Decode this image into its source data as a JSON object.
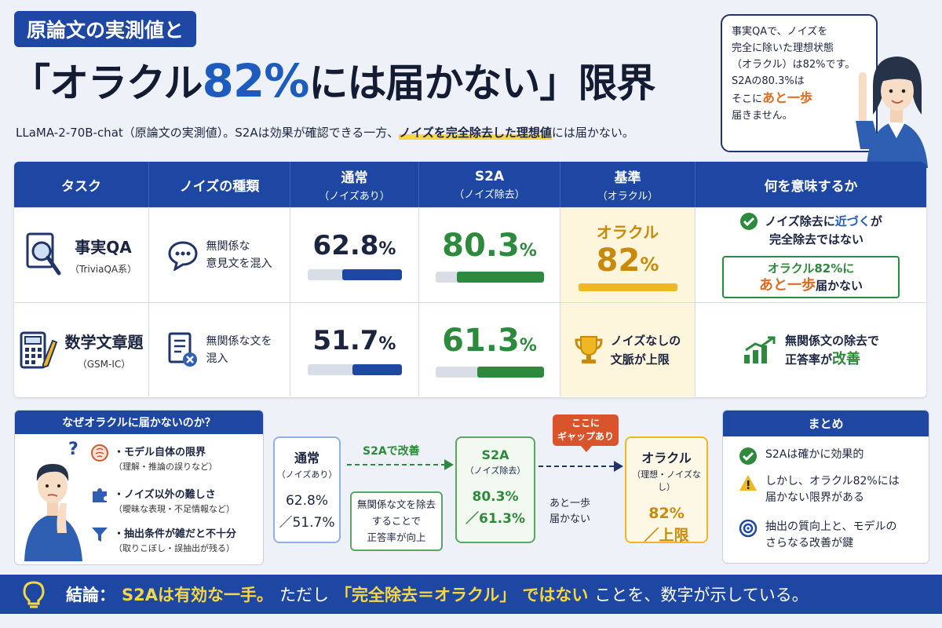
{
  "header": {
    "tag": "原論文の実測値と",
    "title_pre": "「オラクル",
    "title_highlight": "82%",
    "title_post": "には届かない」限界",
    "lead_pre": "LLaMA-2-70B-chat（原論文の実測値）。S2Aは効果が確認できる一方、",
    "lead_mark": "ノイズを完全除去した理想値",
    "lead_post": "には届かない。"
  },
  "bubble": {
    "l1": "事実QAで、ノイズを",
    "l2": "完全に除いた理想状態",
    "l3": "（オラクル）は82%です。",
    "l4": "S2Aの80.3%は",
    "l5_pre": "そこに",
    "l5_em": "あと一歩",
    "l6": "届きません。"
  },
  "table": {
    "headers": [
      {
        "title": "タスク",
        "sub": ""
      },
      {
        "title": "ノイズの種類",
        "sub": ""
      },
      {
        "title": "通常",
        "sub": "（ノイズあり）"
      },
      {
        "title": "S2A",
        "sub": "（ノイズ除去）"
      },
      {
        "title": "基準",
        "sub": "（オラクル）"
      },
      {
        "title": "何を意味するか",
        "sub": ""
      }
    ],
    "rows": [
      {
        "task": "事実QA",
        "task_sub": "（TriviaQA系）",
        "noise_l1": "無関係な",
        "noise_l2": "意見文を混入",
        "normal_num": "62.8",
        "normal_value": 62.8,
        "s2a_num": "80.3",
        "s2a_value": 80.3,
        "oracle_label": "オラクル",
        "oracle_num": "82",
        "meaning_pre": "ノイズ除去に",
        "meaning_em": "近づく",
        "meaning_post": "が",
        "meaning_l2": "完全除去ではない",
        "box_l1": "オラクル82%に",
        "box_em": "あと一歩",
        "box_post": "届かない"
      },
      {
        "task": "数学文章題",
        "task_sub": "（GSM-IC）",
        "noise_l1": "無関係な文を",
        "noise_l2": "混入",
        "normal_num": "51.7",
        "normal_value": 51.7,
        "s2a_num": "61.3",
        "s2a_value": 61.3,
        "oracle_l1": "ノイズなしの",
        "oracle_l2": "文脈が上限",
        "meaning_l1": "無関係文の除去で",
        "meaning_l2_pre": "正答率が",
        "meaning_l2_em": "改善"
      }
    ],
    "pct": "%"
  },
  "why": {
    "title": "なぜオラクルに届かないのか？",
    "items": [
      {
        "t": "・モデル自体の限界",
        "s": "（理解・推論の誤りなど）"
      },
      {
        "t": "・ノイズ以外の難しさ",
        "s": "（曖昧な表現・不足情報など）"
      },
      {
        "t": "・抽出条件が雑だと不十分",
        "s": "（取りこぼし・誤抽出が残る）"
      }
    ]
  },
  "flow": {
    "normal_title": "通常",
    "normal_sub": "（ノイズあり）",
    "normal_v1": "62.8%",
    "normal_v2": "／51.7%",
    "arrow1": "S2Aで改善",
    "note_l1": "無関係な文を除去",
    "note_l2": "することで",
    "note_l3": "正答率が向上",
    "s2a_title": "S2A",
    "s2a_sub": "（ノイズ除去）",
    "s2a_v1": "80.3%",
    "s2a_v2": "／61.3%",
    "gap_l1": "ここに",
    "gap_l2": "ギャップあり",
    "arrow2_l1": "あと一歩",
    "arrow2_l2": "届かない",
    "oracle_title": "オラクル",
    "oracle_sub": "（理想・ノイズなし）",
    "oracle_v1": "82%",
    "oracle_v2": "／上限"
  },
  "summary": {
    "title": "まとめ",
    "i1": "S2Aは確かに効果的",
    "i2_l1": "しかし、オラクル82%には",
    "i2_l2": "届かない限界がある",
    "i3_l1": "抽出の質向上と、モデルの",
    "i3_l2": "さらなる改善が鍵"
  },
  "conclusion": {
    "label": "結論：",
    "y1": "S2Aは有効な一手。",
    "n1": "ただし",
    "y2": "「完全除去＝オラクル」",
    "y3": "ではない",
    "n2": "ことを、数字が示している。"
  },
  "colors": {
    "navy": "#1e47a3",
    "blue": "#1e5bbf",
    "green": "#2d8a3c",
    "gold": "#f0b724",
    "orange": "#e26a1c"
  }
}
